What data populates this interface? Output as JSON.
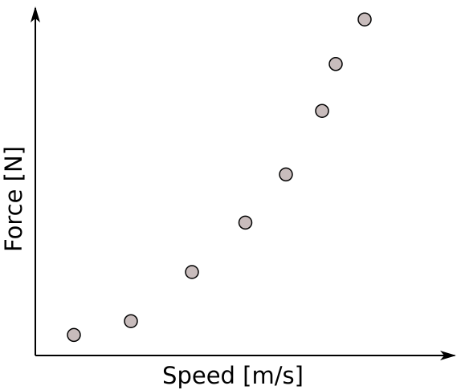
{
  "chart_data": {
    "type": "scatter",
    "xlabel": "Speed [m/s]",
    "ylabel": "Force [N]",
    "xlim": [
      0,
      10
    ],
    "ylim": [
      0,
      10
    ],
    "ticks": false,
    "grid": false,
    "legend": false,
    "marker_fill": "#c8bcbc",
    "marker_stroke": "#000000",
    "points": [
      {
        "x": 0.96,
        "y": 0.64
      },
      {
        "x": 2.38,
        "y": 1.07
      },
      {
        "x": 3.9,
        "y": 2.6
      },
      {
        "x": 5.23,
        "y": 4.14
      },
      {
        "x": 6.24,
        "y": 5.64
      },
      {
        "x": 7.14,
        "y": 7.62
      },
      {
        "x": 7.48,
        "y": 9.08
      },
      {
        "x": 8.2,
        "y": 10.47
      }
    ]
  }
}
